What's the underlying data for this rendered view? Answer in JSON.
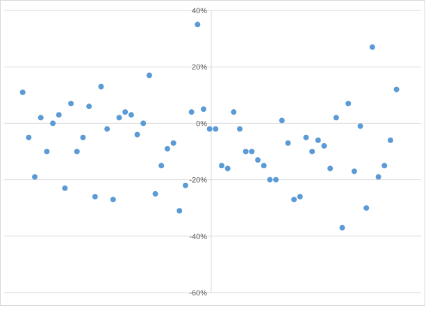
{
  "chart_data": {
    "type": "scatter",
    "title": "",
    "xlabel": "",
    "ylabel": "",
    "ylim": [
      -0.6,
      0.4
    ],
    "yticks": [
      0.4,
      0.2,
      0.0,
      -0.2,
      -0.4,
      -0.6
    ],
    "ytick_labels": [
      "40%",
      "20%",
      "0%",
      "-20%",
      "-40%",
      "-60%"
    ],
    "xlim": [
      0,
      65
    ],
    "grid": true,
    "legend": "none",
    "marker_color": "#5b9bd5",
    "gridline_color": "#d9d9d9",
    "points": [
      [
        1,
        0.11
      ],
      [
        2,
        -0.05
      ],
      [
        3,
        -0.19
      ],
      [
        4,
        0.02
      ],
      [
        5,
        -0.1
      ],
      [
        6,
        0.0
      ],
      [
        7,
        0.03
      ],
      [
        8,
        -0.23
      ],
      [
        9,
        0.07
      ],
      [
        10,
        -0.1
      ],
      [
        11,
        -0.05
      ],
      [
        12,
        0.06
      ],
      [
        13,
        -0.26
      ],
      [
        14,
        0.13
      ],
      [
        15,
        -0.02
      ],
      [
        16,
        -0.27
      ],
      [
        17,
        0.02
      ],
      [
        18,
        0.04
      ],
      [
        19,
        0.03
      ],
      [
        20,
        -0.04
      ],
      [
        21,
        0.0
      ],
      [
        22,
        0.17
      ],
      [
        23,
        -0.25
      ],
      [
        24,
        -0.15
      ],
      [
        25,
        -0.09
      ],
      [
        26,
        -0.07
      ],
      [
        27,
        -0.31
      ],
      [
        28,
        -0.22
      ],
      [
        29,
        0.04
      ],
      [
        30,
        0.35
      ],
      [
        31,
        0.05
      ],
      [
        32,
        -0.02
      ],
      [
        33,
        -0.02
      ],
      [
        34,
        -0.15
      ],
      [
        35,
        -0.16
      ],
      [
        36,
        0.04
      ],
      [
        37,
        -0.02
      ],
      [
        38,
        -0.1
      ],
      [
        39,
        -0.1
      ],
      [
        40,
        -0.13
      ],
      [
        41,
        -0.15
      ],
      [
        42,
        -0.2
      ],
      [
        43,
        -0.2
      ],
      [
        44,
        0.01
      ],
      [
        45,
        -0.07
      ],
      [
        46,
        -0.27
      ],
      [
        47,
        -0.26
      ],
      [
        48,
        -0.05
      ],
      [
        49,
        -0.1
      ],
      [
        50,
        -0.06
      ],
      [
        51,
        -0.08
      ],
      [
        52,
        -0.16
      ],
      [
        53,
        0.02
      ],
      [
        54,
        -0.37
      ],
      [
        55,
        0.07
      ],
      [
        56,
        -0.17
      ],
      [
        57,
        -0.01
      ],
      [
        58,
        -0.3
      ],
      [
        59,
        0.27
      ],
      [
        60,
        -0.19
      ],
      [
        61,
        -0.15
      ],
      [
        62,
        -0.06
      ],
      [
        63,
        0.12
      ]
    ]
  }
}
